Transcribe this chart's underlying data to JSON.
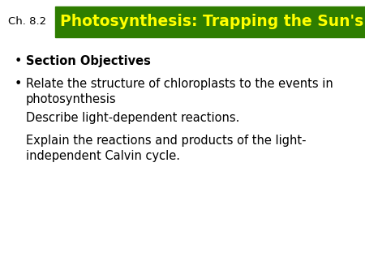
{
  "chapter_label": "Ch. 8.2",
  "title": "Photosynthesis: Trapping the Sun's Energy",
  "title_color": "#FFFF00",
  "title_bg_color": "#2E7D00",
  "background_color": "#FFFFFF",
  "text_color": "#000000",
  "chapter_label_fontsize": 9.5,
  "title_fontsize": 13.5,
  "body_fontsize": 10.5,
  "bullet_items": [
    {
      "text": "Section Objectives",
      "bold": true,
      "bullet": true,
      "indent": 0
    },
    {
      "text": "Relate the structure of chloroplasts to the events in\nphotosynthesis",
      "bold": false,
      "bullet": true,
      "indent": 0
    },
    {
      "text": "Describe light-dependent reactions.",
      "bold": false,
      "bullet": false,
      "indent": 1
    },
    {
      "text": "Explain the reactions and products of the light-\nindependent Calvin cycle.",
      "bold": false,
      "bullet": false,
      "indent": 1
    }
  ]
}
